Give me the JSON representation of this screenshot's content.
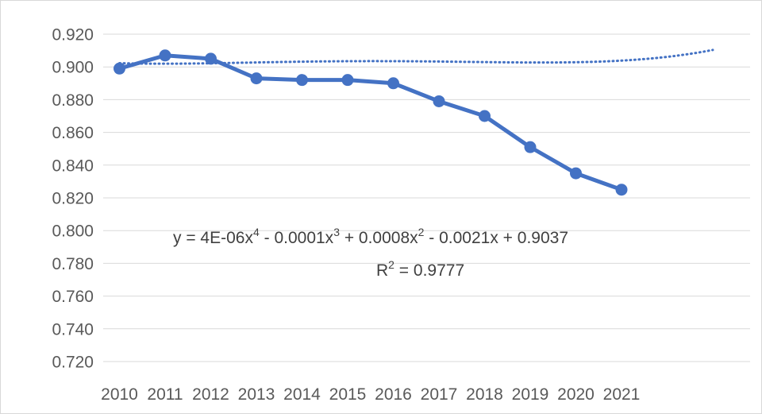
{
  "chart_data": {
    "type": "line",
    "categories": [
      "2010",
      "2011",
      "2012",
      "2013",
      "2014",
      "2015",
      "2016",
      "2017",
      "2018",
      "2019",
      "2020",
      "2021"
    ],
    "series": [
      {
        "values": [
          0.899,
          0.907,
          0.905,
          0.893,
          0.892,
          0.892,
          0.89,
          0.879,
          0.87,
          0.851,
          0.835,
          0.825
        ]
      }
    ],
    "ylim": [
      0.72,
      0.92
    ],
    "yticks": [
      "0.920",
      "0.900",
      "0.880",
      "0.860",
      "0.840",
      "0.820",
      "0.800",
      "0.780",
      "0.760",
      "0.740",
      "0.720"
    ],
    "grid": true,
    "legend": "none",
    "trendline": {
      "type": "polynomial",
      "order": 4,
      "coefficients": [
        4e-06,
        -0.0001,
        0.0008,
        -0.0021,
        0.9037
      ],
      "forecast_forward": 2,
      "equation_parts": {
        "prefix": "y = 4E-06x",
        "exp1": "4",
        "part2": " - 0.0001x",
        "exp2": "3",
        "part3": " + 0.0008x",
        "exp3": "2",
        "part4": " - 0.0021x + 0.9037"
      },
      "r2_parts": {
        "prefix": "R",
        "exp": "2",
        "suffix": " = 0.9777"
      }
    },
    "colors": {
      "series": "#4472c4",
      "grid": "#d9d9d9",
      "text": "#595959"
    }
  }
}
